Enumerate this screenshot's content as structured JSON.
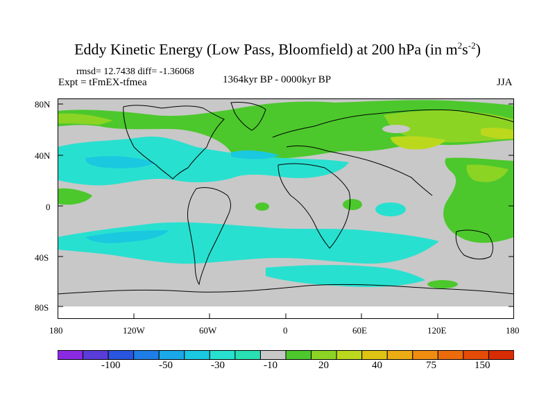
{
  "header": {
    "title_main": "Eddy Kinetic Energy (Low Pass, Bloomfield) at 200 hPa (in m",
    "title_sup1": "2",
    "title_mid": "s",
    "title_sup2": "-2",
    "title_end": ")",
    "stats": "rmsd= 12.7438 diff= -1.36068",
    "experiment": "Expt = tFmEX-tfmea",
    "period": "1364kyr BP - 0000kyr BP",
    "season": "JJA"
  },
  "axes": {
    "y_labels": [
      "80N",
      "40N",
      "0",
      "40S",
      "80S"
    ],
    "x_labels": [
      "180",
      "120W",
      "60W",
      "0",
      "60E",
      "120E",
      "180"
    ]
  },
  "colorbar": {
    "labels": [
      "-100",
      "-50",
      "-30",
      "-10",
      "20",
      "40",
      "75",
      "150"
    ],
    "colors": [
      "#8a2be2",
      "#5a3cd8",
      "#2a55e0",
      "#1e7ee8",
      "#1aa8e8",
      "#1ac8e0",
      "#28e0d0",
      "#28e0b4",
      "#c8c8c8",
      "#4cc82c",
      "#8cd424",
      "#bcd81c",
      "#e0c414",
      "#ecac14",
      "#f08c10",
      "#ec6c0c",
      "#e44c08",
      "#d82c04"
    ]
  },
  "colors": {
    "land_fill": "#c8c8c8",
    "neg_light": "#28e0d0",
    "neg_mid": "#1ac8e0",
    "pos_light": "#4cc82c",
    "pos_mid": "#8cd424",
    "pos_high": "#bcd81c"
  }
}
